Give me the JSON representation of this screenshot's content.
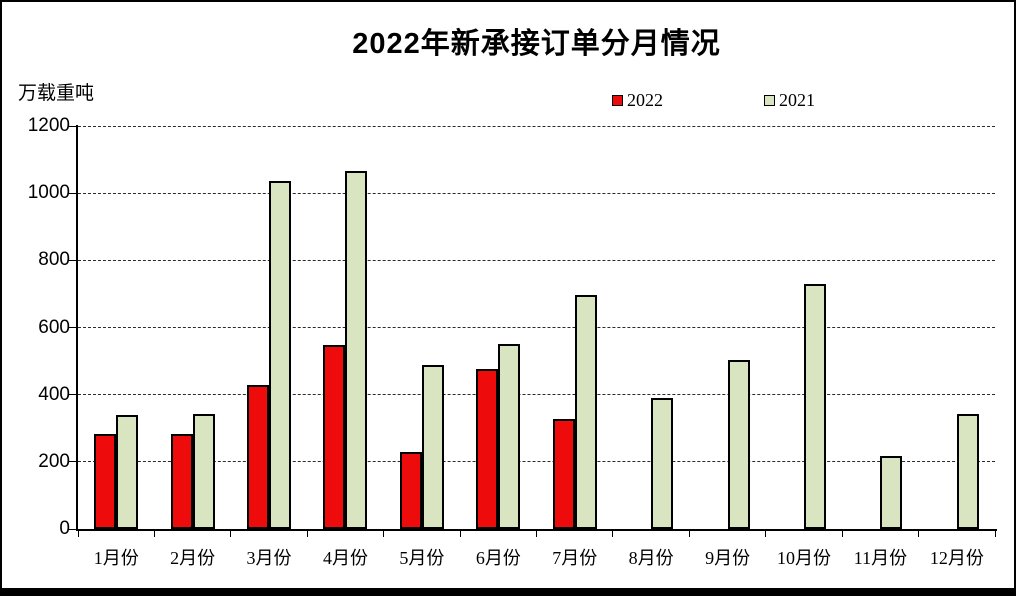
{
  "title": "2022年新承接订单分月情况",
  "y_axis_unit_label": "万载重吨",
  "legend": {
    "items": [
      {
        "label": "2022",
        "color": "#ee0b0c"
      },
      {
        "label": "2021",
        "color": "#d9e4c0"
      }
    ]
  },
  "chart_data": {
    "type": "bar",
    "title": "2022年新承接订单分月情况",
    "ylabel": "万载重吨",
    "xlabel": "",
    "categories": [
      "1月份",
      "2月份",
      "3月份",
      "4月份",
      "5月份",
      "6月份",
      "7月份",
      "8月份",
      "9月份",
      "10月份",
      "11月份",
      "12月份"
    ],
    "series": [
      {
        "name": "2022",
        "color": "#ee0b0c",
        "values": [
          283,
          284,
          428,
          547,
          228,
          476,
          327,
          null,
          null,
          null,
          null,
          null
        ]
      },
      {
        "name": "2021",
        "color": "#d9e4c0",
        "values": [
          339,
          343,
          1036,
          1066,
          489,
          550,
          697,
          389,
          504,
          730,
          216,
          341
        ]
      }
    ],
    "ylim": [
      0,
      1200
    ],
    "yticks": [
      0,
      200,
      400,
      600,
      800,
      1000,
      1200
    ],
    "grid": "horizontal-dashed",
    "legend_position": "top"
  }
}
